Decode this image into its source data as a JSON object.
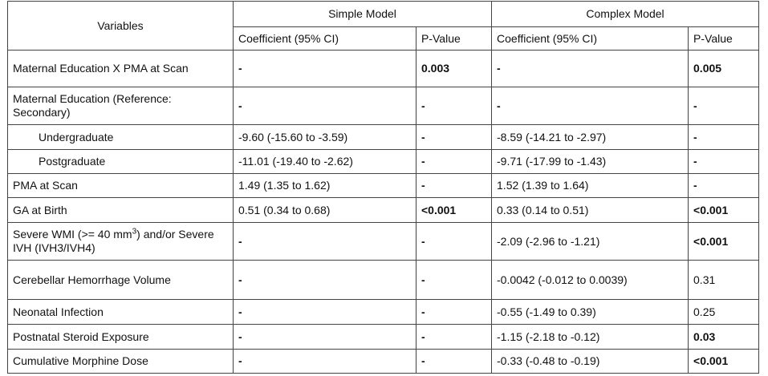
{
  "header": {
    "variables": "Variables",
    "groups": [
      "Simple Model",
      "Complex Model"
    ],
    "subheaders": [
      "Coefficient (95% CI)",
      "P-Value",
      "Coefficient (95% CI)",
      "P-Value"
    ]
  },
  "table": {
    "rows": [
      {
        "cells": [
          "Maternal Education X PMA at Scan",
          "-",
          "0.003",
          "-",
          "0.005"
        ],
        "bold": [
          false,
          true,
          true,
          true,
          true
        ],
        "indent": false
      },
      {
        "cells": [
          "Maternal Education (Reference: Secondary)",
          "-",
          "-",
          "-",
          "-"
        ],
        "bold": [
          false,
          true,
          true,
          true,
          true
        ],
        "indent": false
      },
      {
        "cells": [
          "Undergraduate",
          "-9.60 (-15.60 to -3.59)",
          "-",
          "-8.59 (-14.21 to -2.97)",
          "-"
        ],
        "bold": [
          false,
          false,
          true,
          false,
          true
        ],
        "indent": true
      },
      {
        "cells": [
          "Postgraduate",
          "-11.01 (-19.40 to -2.62)",
          "-",
          "-9.71 (-17.99 to -1.43)",
          "-"
        ],
        "bold": [
          false,
          false,
          true,
          false,
          true
        ],
        "indent": true
      },
      {
        "cells": [
          "PMA at Scan",
          "1.49 (1.35 to 1.62)",
          "-",
          "1.52 (1.39 to 1.64)",
          "-"
        ],
        "bold": [
          false,
          false,
          true,
          false,
          true
        ],
        "indent": false
      },
      {
        "cells": [
          "GA at Birth",
          "0.51 (0.34 to 0.68)",
          "<0.001",
          "0.33 (0.14 to 0.51)",
          "<0.001"
        ],
        "bold": [
          false,
          false,
          true,
          false,
          true
        ],
        "indent": false
      },
      {
        "cells": [
          [
            {
              "text": "Severe WMI (>= 40 mm"
            },
            {
              "text": "3",
              "sup": true
            },
            {
              "text": ") and/or Severe IVH (IVH3/IVH4)"
            }
          ],
          "-",
          "-",
          "-2.09 (-2.96 to -1.21)",
          "<0.001"
        ],
        "bold": [
          false,
          true,
          true,
          false,
          true
        ],
        "indent": false
      },
      {
        "cells": [
          "Cerebellar Hemorrhage Volume",
          "-",
          "-",
          "-0.0042 (-0.012 to 0.0039)",
          "0.31"
        ],
        "bold": [
          false,
          true,
          true,
          false,
          false
        ],
        "indent": false
      },
      {
        "cells": [
          "Neonatal Infection",
          "-",
          "-",
          "-0.55 (-1.49 to 0.39)",
          "0.25"
        ],
        "bold": [
          false,
          true,
          true,
          false,
          false
        ],
        "indent": false
      },
      {
        "cells": [
          "Postnatal Steroid Exposure",
          "-",
          "-",
          "-1.15 (-2.18 to -0.12)",
          "0.03"
        ],
        "bold": [
          false,
          true,
          true,
          false,
          true
        ],
        "indent": false
      },
      {
        "cells": [
          "Cumulative Morphine Dose",
          "-",
          "-",
          "-0.33 (-0.48 to -0.19)",
          "<0.001"
        ],
        "bold": [
          false,
          true,
          true,
          false,
          true
        ],
        "indent": false
      }
    ]
  }
}
